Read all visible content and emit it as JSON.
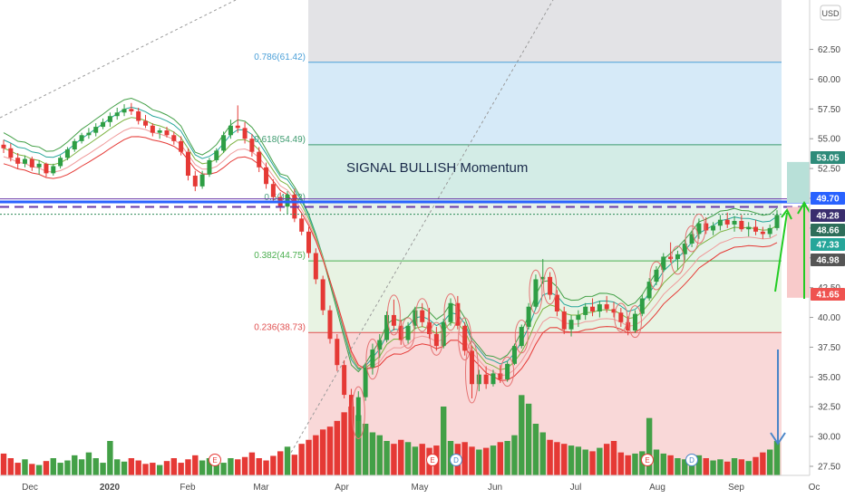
{
  "chart_data": {
    "type": "candlestick",
    "currency": "USD",
    "y_range": [
      26.5,
      67.0
    ],
    "y_ticks": [
      "27.50",
      "30.00",
      "32.50",
      "35.00",
      "37.50",
      "40.00",
      "42.50",
      "45.00",
      "47.50",
      "50.00",
      "52.50",
      "55.00",
      "57.50",
      "60.00",
      "62.50"
    ],
    "x_ticks": [
      "Dec",
      "2020",
      "Feb",
      "Mar",
      "Apr",
      "May",
      "Jun",
      "Jul",
      "Aug",
      "Sep",
      "Oc"
    ],
    "fib_levels": [
      {
        "label": "0.786(61.42)",
        "value": 61.42,
        "color": "#4a9fd8"
      },
      {
        "label": "0.618(54.49)",
        "value": 54.49,
        "color": "#3c9a6e"
      },
      {
        "label": "0.5(49.62)",
        "value": 49.62,
        "color": "#4aa080"
      },
      {
        "label": "0.382(44.75)",
        "value": 44.75,
        "color": "#4caf50"
      },
      {
        "label": "0.236(38.73)",
        "value": 38.73,
        "color": "#e05050"
      }
    ],
    "annotation": "SIGNAL BULLISH Momentum",
    "price_tags": [
      {
        "label": "53.05",
        "value": 53.05,
        "color": "#2e8b7a"
      },
      {
        "label": "49.70",
        "value": 49.7,
        "color": "#2962ff"
      },
      {
        "label": "49.28",
        "value": 49.28,
        "color": "#3a2e6e"
      },
      {
        "label": "48.66",
        "value": 48.66,
        "color": "#2e6e5a"
      },
      {
        "label": "47.33",
        "value": 47.33,
        "color": "#26a69a"
      },
      {
        "label": "46.98",
        "value": 46.98,
        "color": "#555555"
      },
      {
        "label": "41.65",
        "value": 41.65,
        "color": "#ef5350"
      }
    ],
    "horizontal_lines": [
      {
        "value": 49.7,
        "color": "#2962ff",
        "style": "solid"
      },
      {
        "value": 49.28,
        "color": "#6a3aa8",
        "style": "dashed"
      },
      {
        "value": 48.66,
        "color": "#2e8b57",
        "style": "dotted"
      }
    ],
    "events": [
      "E",
      "E",
      "D",
      "E",
      "D"
    ],
    "candles": [
      [
        54.5,
        54.9,
        53.8,
        54.2
      ],
      [
        54.2,
        54.6,
        53.1,
        53.4
      ],
      [
        53.4,
        53.8,
        52.5,
        52.9
      ],
      [
        52.9,
        53.6,
        52.6,
        53.3
      ],
      [
        53.3,
        53.5,
        52.3,
        52.6
      ],
      [
        52.6,
        53.2,
        52.0,
        52.9
      ],
      [
        52.9,
        53.0,
        51.8,
        52.1
      ],
      [
        52.1,
        52.9,
        51.9,
        52.7
      ],
      [
        52.7,
        53.6,
        52.5,
        53.4
      ],
      [
        53.4,
        54.3,
        53.2,
        54.1
      ],
      [
        54.1,
        55.0,
        53.9,
        54.8
      ],
      [
        54.8,
        55.5,
        54.6,
        55.3
      ],
      [
        55.3,
        55.9,
        55.0,
        55.5
      ],
      [
        55.5,
        56.3,
        55.2,
        56.0
      ],
      [
        56.0,
        56.7,
        55.8,
        56.4
      ],
      [
        56.4,
        57.2,
        56.0,
        56.9
      ],
      [
        56.9,
        57.6,
        56.6,
        57.2
      ],
      [
        57.2,
        57.9,
        56.9,
        57.5
      ],
      [
        57.5,
        58.0,
        57.0,
        57.3
      ],
      [
        57.3,
        57.6,
        56.2,
        56.5
      ],
      [
        56.5,
        57.0,
        55.9,
        56.1
      ],
      [
        56.1,
        56.3,
        55.2,
        55.5
      ],
      [
        55.5,
        55.9,
        55.0,
        55.7
      ],
      [
        55.7,
        56.0,
        55.1,
        55.3
      ],
      [
        55.3,
        55.6,
        54.5,
        54.8
      ],
      [
        54.8,
        55.2,
        53.6,
        53.9
      ],
      [
        53.9,
        54.2,
        51.5,
        51.9
      ],
      [
        51.9,
        52.3,
        50.6,
        51.0
      ],
      [
        51.0,
        52.3,
        50.8,
        52.0
      ],
      [
        52.0,
        53.4,
        51.8,
        53.2
      ],
      [
        53.2,
        54.2,
        53.0,
        54.0
      ],
      [
        54.0,
        55.6,
        53.8,
        55.3
      ],
      [
        55.3,
        56.6,
        55.0,
        56.1
      ],
      [
        56.1,
        57.8,
        55.5,
        55.9
      ],
      [
        55.9,
        56.4,
        54.6,
        55.0
      ],
      [
        55.0,
        55.4,
        53.5,
        53.9
      ],
      [
        53.9,
        54.3,
        52.2,
        52.6
      ],
      [
        52.6,
        53.0,
        50.8,
        51.2
      ],
      [
        51.2,
        51.6,
        49.8,
        50.1
      ],
      [
        50.1,
        50.5,
        48.9,
        49.3
      ],
      [
        49.3,
        50.6,
        48.7,
        50.3
      ],
      [
        50.3,
        50.8,
        48.0,
        48.3
      ],
      [
        48.3,
        48.7,
        46.9,
        47.2
      ],
      [
        47.2,
        47.6,
        45.0,
        45.4
      ],
      [
        45.4,
        45.8,
        42.8,
        43.2
      ],
      [
        43.2,
        43.5,
        40.2,
        40.6
      ],
      [
        40.6,
        41.0,
        37.8,
        38.2
      ],
      [
        38.2,
        38.6,
        35.5,
        36.0
      ],
      [
        36.0,
        36.4,
        33.2,
        33.5
      ],
      [
        33.5,
        34.0,
        30.5,
        31.3
      ],
      [
        31.3,
        33.8,
        30.2,
        33.3
      ],
      [
        33.3,
        36.2,
        33.0,
        35.8
      ],
      [
        35.8,
        37.8,
        35.2,
        37.3
      ],
      [
        37.3,
        38.6,
        36.6,
        38.1
      ],
      [
        38.1,
        40.5,
        37.9,
        40.2
      ],
      [
        40.2,
        41.5,
        38.9,
        39.3
      ],
      [
        39.3,
        39.8,
        37.7,
        38.1
      ],
      [
        38.1,
        39.6,
        37.8,
        39.3
      ],
      [
        39.3,
        40.9,
        39.0,
        40.6
      ],
      [
        40.6,
        41.2,
        39.2,
        39.6
      ],
      [
        39.6,
        40.8,
        38.2,
        38.6
      ],
      [
        38.6,
        39.2,
        37.2,
        37.6
      ],
      [
        37.6,
        39.9,
        37.4,
        39.6
      ],
      [
        39.6,
        41.6,
        39.3,
        41.2
      ],
      [
        41.2,
        41.8,
        39.0,
        39.3
      ],
      [
        39.3,
        39.6,
        36.8,
        37.2
      ],
      [
        37.2,
        37.6,
        33.2,
        34.4
      ],
      [
        34.4,
        35.6,
        33.8,
        35.2
      ],
      [
        35.2,
        35.9,
        34.0,
        34.4
      ],
      [
        34.4,
        35.6,
        34.2,
        35.3
      ],
      [
        35.3,
        36.0,
        34.5,
        34.8
      ],
      [
        34.8,
        36.3,
        34.6,
        36.1
      ],
      [
        36.1,
        37.8,
        36.0,
        37.6
      ],
      [
        37.6,
        39.4,
        37.4,
        39.2
      ],
      [
        39.2,
        41.2,
        39.0,
        40.9
      ],
      [
        40.9,
        43.6,
        40.7,
        43.2
      ],
      [
        43.2,
        44.9,
        42.8,
        43.4
      ],
      [
        43.4,
        43.8,
        41.5,
        41.9
      ],
      [
        41.9,
        42.3,
        40.1,
        40.5
      ],
      [
        40.5,
        40.9,
        38.6,
        39.0
      ],
      [
        39.0,
        40.2,
        38.4,
        39.8
      ],
      [
        39.8,
        40.6,
        39.2,
        40.2
      ],
      [
        40.2,
        41.2,
        39.8,
        40.9
      ],
      [
        40.9,
        41.6,
        40.1,
        40.5
      ],
      [
        40.5,
        41.4,
        40.0,
        41.1
      ],
      [
        41.1,
        41.8,
        40.4,
        40.7
      ],
      [
        40.7,
        41.3,
        40.0,
        40.4
      ],
      [
        40.4,
        40.8,
        39.2,
        39.6
      ],
      [
        39.6,
        40.1,
        38.5,
        38.9
      ],
      [
        38.9,
        40.6,
        38.7,
        40.3
      ],
      [
        40.3,
        41.9,
        40.1,
        41.6
      ],
      [
        41.6,
        43.3,
        41.4,
        43.0
      ],
      [
        43.0,
        44.3,
        42.7,
        44.0
      ],
      [
        44.0,
        45.4,
        43.8,
        45.1
      ],
      [
        45.1,
        46.3,
        44.6,
        44.9
      ],
      [
        44.9,
        45.6,
        44.0,
        45.3
      ],
      [
        45.3,
        46.5,
        44.8,
        46.2
      ],
      [
        46.2,
        47.3,
        45.9,
        47.0
      ],
      [
        47.0,
        48.3,
        46.6,
        47.9
      ],
      [
        47.9,
        48.4,
        47.0,
        47.3
      ],
      [
        47.3,
        48.0,
        46.9,
        47.7
      ],
      [
        47.7,
        48.6,
        47.3,
        48.2
      ],
      [
        48.2,
        48.8,
        47.5,
        47.8
      ],
      [
        47.8,
        48.5,
        47.2,
        48.1
      ],
      [
        48.1,
        48.6,
        47.2,
        47.4
      ],
      [
        47.4,
        48.0,
        46.8,
        47.6
      ],
      [
        47.6,
        48.2,
        46.9,
        47.2
      ],
      [
        47.2,
        47.6,
        46.6,
        47.0
      ],
      [
        47.0,
        47.8,
        46.7,
        47.5
      ],
      [
        47.5,
        49.0,
        47.3,
        48.6
      ]
    ],
    "volume": [
      38,
      30,
      22,
      28,
      20,
      18,
      25,
      30,
      22,
      26,
      35,
      28,
      40,
      30,
      22,
      60,
      28,
      24,
      30,
      26,
      20,
      22,
      18,
      25,
      30,
      22,
      28,
      35,
      26,
      30,
      24,
      22,
      30,
      28,
      32,
      40,
      30,
      26,
      34,
      42,
      50,
      36,
      55,
      62,
      70,
      80,
      85,
      95,
      110,
      120,
      105,
      90,
      75,
      70,
      60,
      55,
      62,
      58,
      50,
      55,
      48,
      52,
      120,
      60,
      55,
      58,
      50,
      45,
      48,
      52,
      58,
      60,
      70,
      140,
      125,
      90,
      75,
      62,
      58,
      55,
      52,
      50,
      45,
      42,
      48,
      55,
      60,
      40,
      35,
      38,
      42,
      100,
      45,
      38,
      35,
      30,
      28,
      32,
      35,
      30,
      26,
      28,
      24,
      30,
      28,
      25,
      32,
      40,
      45,
      60
    ]
  }
}
